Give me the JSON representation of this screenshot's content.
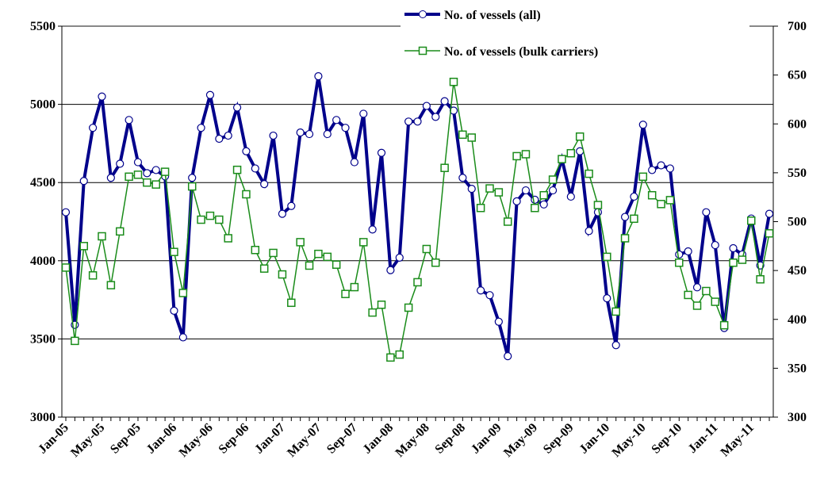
{
  "chart_data": {
    "type": "line",
    "categories": [
      "Jan-05",
      null,
      null,
      null,
      "May-05",
      null,
      null,
      null,
      "Sep-05",
      null,
      null,
      null,
      "Jan-06",
      null,
      null,
      null,
      "May-06",
      null,
      null,
      null,
      "Sep-06",
      null,
      null,
      null,
      "Jan-07",
      null,
      null,
      null,
      "May-07",
      null,
      null,
      null,
      "Sep-07",
      null,
      null,
      null,
      "Jan-08",
      null,
      null,
      null,
      "May-08",
      null,
      null,
      null,
      "Sep-08",
      null,
      null,
      null,
      "Jan-09",
      null,
      null,
      null,
      "May-09",
      null,
      null,
      null,
      "Sep-09",
      null,
      null,
      null,
      "Jan-10",
      null,
      null,
      null,
      "May-10",
      null,
      null,
      null,
      "Sep-10",
      null,
      null,
      null,
      "Jan-11",
      null,
      null,
      null,
      "May-11",
      null,
      null
    ],
    "series": [
      {
        "name": "No. of vessels (all)",
        "color": "#00008b",
        "values": [
          4310,
          3590,
          4510,
          4850,
          5050,
          4530,
          4620,
          4900,
          4630,
          4560,
          4580,
          4540,
          3680,
          3510,
          4530,
          4850,
          5060,
          4780,
          4800,
          4980,
          4700,
          4590,
          4490,
          4800,
          4300,
          4350,
          4820,
          4810,
          5180,
          4810,
          4900,
          4850,
          4630,
          4940,
          4200,
          4690,
          3940,
          4020,
          4890,
          4890,
          4990,
          4920,
          5020,
          4960,
          4530,
          4460,
          3810,
          3780,
          3610,
          3390,
          4380,
          4450,
          4390,
          4360,
          4450,
          4650,
          4410,
          4700,
          4190,
          4310,
          3760,
          3460,
          4280,
          4410,
          4870,
          4580,
          4610,
          4590,
          4040,
          4060,
          3830,
          4310,
          4100,
          3570,
          4080,
          4040,
          4270,
          3970,
          4300
        ]
      },
      {
        "name": "No. of vessels (bulk carriers)",
        "color": "#1a8c1a",
        "axis": "y2",
        "values": [
          453,
          378,
          475,
          445,
          485,
          435,
          490,
          546,
          548,
          540,
          538,
          551,
          469,
          427,
          536,
          502,
          506,
          502,
          483,
          553,
          528,
          471,
          452,
          468,
          446,
          417,
          479,
          455,
          467,
          464,
          456,
          426,
          433,
          479,
          407,
          415,
          361,
          364,
          412,
          438,
          472,
          458,
          555,
          643,
          589,
          586,
          514,
          534,
          530,
          500,
          567,
          569,
          514,
          527,
          543,
          564,
          570,
          587,
          549,
          517,
          464,
          408,
          483,
          503,
          546,
          527,
          518,
          522,
          458,
          425,
          414,
          429,
          418,
          394,
          458,
          461,
          501,
          441,
          488
        ]
      }
    ],
    "ylim": [
      3000,
      5500
    ],
    "yticks": [
      3000,
      3500,
      4000,
      4500,
      5000,
      5500
    ],
    "y2lim": [
      300,
      700
    ],
    "y2ticks": [
      300,
      350,
      400,
      450,
      500,
      550,
      600,
      650,
      700
    ],
    "grid": true,
    "legend": "top-right"
  }
}
